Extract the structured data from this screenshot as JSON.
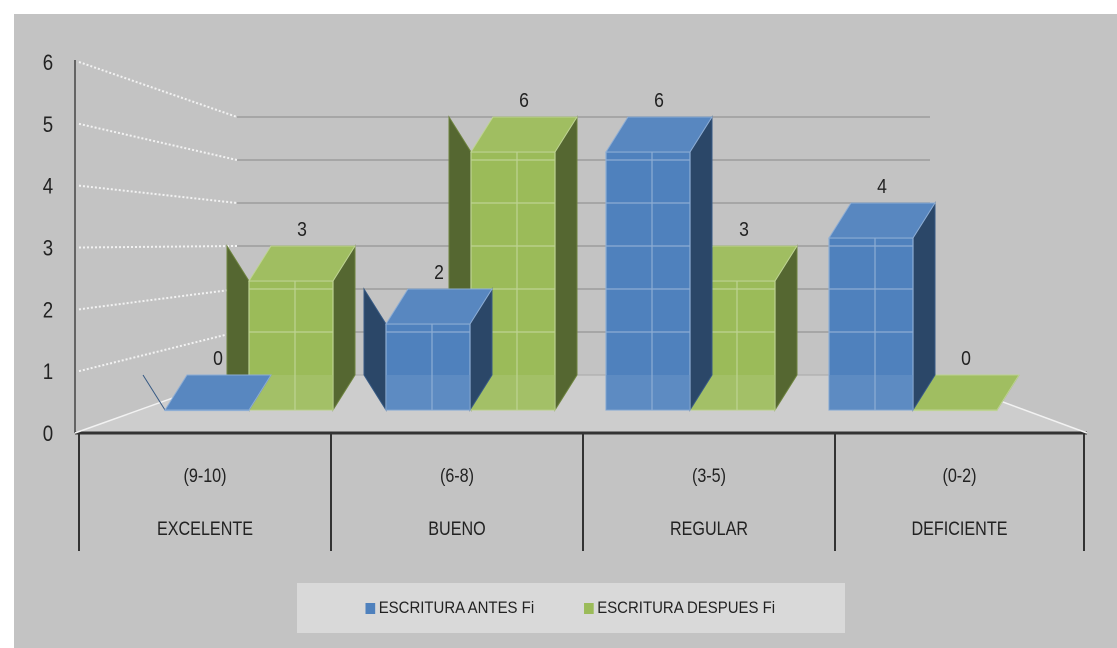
{
  "chart_data": {
    "type": "bar",
    "title": "",
    "xlabel": "",
    "ylabel": "",
    "ylim": [
      0,
      6
    ],
    "yticks": [
      0,
      1,
      2,
      3,
      4,
      5,
      6
    ],
    "grid": true,
    "legend_position": "bottom",
    "categories": [
      {
        "range": "(9-10)",
        "label": "EXCELENTE"
      },
      {
        "range": "(6-8)",
        "label": "BUENO"
      },
      {
        "range": "(3-5)",
        "label": "REGULAR"
      },
      {
        "range": "(0-2)",
        "label": "DEFICIENTE"
      }
    ],
    "series": [
      {
        "name": "ESCRITURA ANTES Fi",
        "color": "#4f81bd",
        "values": [
          0,
          2,
          6,
          4
        ]
      },
      {
        "name": "ESCRITURA DESPUES Fi",
        "color": "#9bbb59",
        "values": [
          3,
          6,
          3,
          0
        ]
      }
    ]
  }
}
